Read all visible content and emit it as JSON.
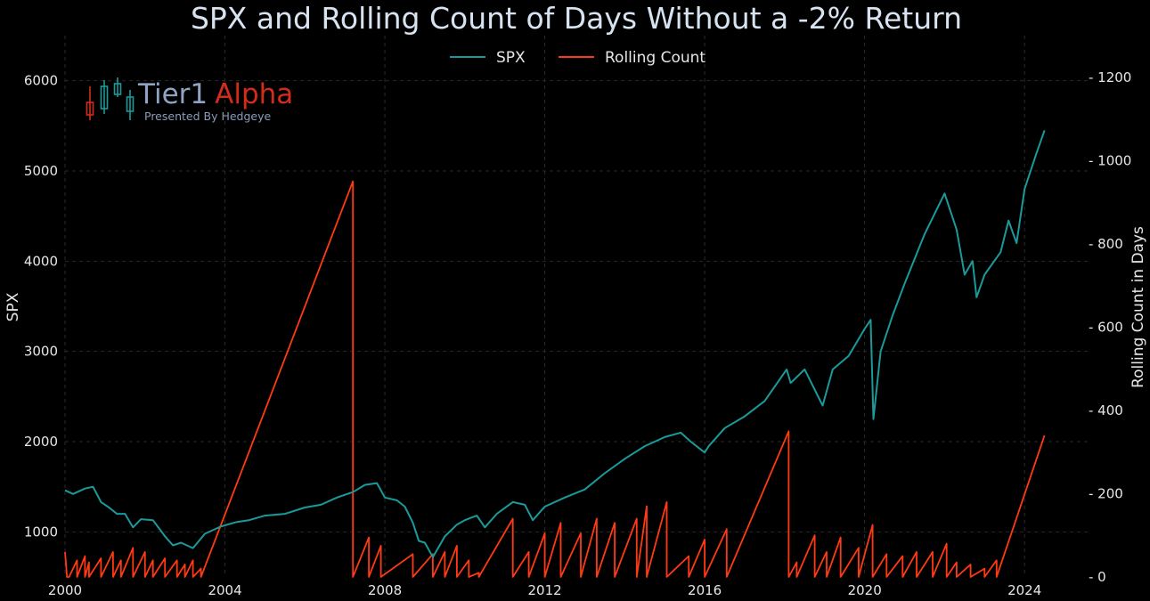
{
  "chart_data": {
    "type": "line",
    "title": "SPX and Rolling Count of Days Without a -2% Return",
    "xlabel": "",
    "ylabel_left": "SPX",
    "ylabel_right": "Rolling Count in Days",
    "xlim": [
      2000,
      2025.6
    ],
    "ylim_left": [
      500,
      6500
    ],
    "ylim_right": [
      0,
      1300
    ],
    "x_ticks": [
      2000,
      2004,
      2008,
      2012,
      2016,
      2020,
      2024
    ],
    "x_tick_labels": [
      "2000",
      "2004",
      "2008",
      "2012",
      "2016",
      "2020",
      "2024"
    ],
    "y_left_ticks": [
      1000,
      2000,
      3000,
      4000,
      5000,
      6000
    ],
    "y_left_tick_labels": [
      "1000",
      "2000",
      "3000",
      "4000",
      "5000",
      "6000"
    ],
    "y_right_ticks": [
      0,
      200,
      400,
      600,
      800,
      1000,
      1200
    ],
    "y_right_tick_labels": [
      "- 0",
      "- 200",
      "- 400",
      "- 600",
      "- 800",
      "- 1000",
      "- 1200"
    ],
    "grid": true,
    "legend_position": "top-center",
    "series": [
      {
        "name": "SPX",
        "axis": "left",
        "color": "#1a9a9a",
        "x": [
          2000.0,
          2000.2,
          2000.5,
          2000.7,
          2000.9,
          2001.1,
          2001.3,
          2001.5,
          2001.7,
          2001.9,
          2002.2,
          2002.5,
          2002.7,
          2002.9,
          2003.2,
          2003.5,
          2003.9,
          2004.3,
          2004.6,
          2005.0,
          2005.5,
          2006.0,
          2006.4,
          2006.8,
          2007.2,
          2007.5,
          2007.8,
          2008.0,
          2008.3,
          2008.5,
          2008.7,
          2008.85,
          2009.0,
          2009.2,
          2009.5,
          2009.8,
          2010.0,
          2010.3,
          2010.5,
          2010.8,
          2011.2,
          2011.5,
          2011.7,
          2012.0,
          2012.5,
          2013.0,
          2013.5,
          2014.0,
          2014.5,
          2015.0,
          2015.4,
          2015.65,
          2016.0,
          2016.1,
          2016.5,
          2017.0,
          2017.5,
          2018.05,
          2018.15,
          2018.5,
          2018.95,
          2019.2,
          2019.6,
          2020.0,
          2020.15,
          2020.22,
          2020.4,
          2020.7,
          2021.0,
          2021.5,
          2022.0,
          2022.3,
          2022.5,
          2022.7,
          2022.8,
          2023.0,
          2023.4,
          2023.6,
          2023.8,
          2024.0,
          2024.3,
          2024.5
        ],
        "y": [
          1460,
          1420,
          1480,
          1500,
          1330,
          1270,
          1200,
          1200,
          1050,
          1140,
          1130,
          950,
          850,
          880,
          820,
          980,
          1060,
          1110,
          1130,
          1180,
          1200,
          1270,
          1300,
          1380,
          1440,
          1520,
          1540,
          1380,
          1350,
          1280,
          1100,
          900,
          880,
          720,
          950,
          1080,
          1130,
          1180,
          1050,
          1200,
          1330,
          1300,
          1130,
          1280,
          1380,
          1470,
          1650,
          1810,
          1950,
          2050,
          2100,
          2000,
          1880,
          1950,
          2150,
          2280,
          2450,
          2800,
          2650,
          2800,
          2400,
          2800,
          2950,
          3250,
          3350,
          2250,
          3000,
          3400,
          3750,
          4300,
          4750,
          4350,
          3850,
          4000,
          3600,
          3850,
          4100,
          4450,
          4200,
          4800,
          5200,
          5450
        ]
      },
      {
        "name": "Rolling Count",
        "axis": "right",
        "color": "#ff3a12",
        "x": [
          2000.0,
          2000.05,
          2000.1,
          2000.3,
          2000.3,
          2000.5,
          2000.5,
          2000.6,
          2000.6,
          2000.9,
          2000.9,
          2001.2,
          2001.2,
          2001.4,
          2001.4,
          2001.7,
          2001.7,
          2002.0,
          2002.0,
          2002.2,
          2002.2,
          2002.5,
          2002.5,
          2002.8,
          2002.8,
          2003.0,
          2003.0,
          2003.2,
          2003.2,
          2003.4,
          2003.4,
          2007.2,
          2007.2,
          2007.6,
          2007.6,
          2007.9,
          2007.9,
          2008.7,
          2008.7,
          2009.2,
          2009.2,
          2009.5,
          2009.5,
          2009.8,
          2009.8,
          2010.1,
          2010.1,
          2010.35,
          2010.35,
          2011.2,
          2011.2,
          2011.6,
          2011.6,
          2012.0,
          2012.0,
          2012.4,
          2012.4,
          2012.9,
          2012.9,
          2013.3,
          2013.3,
          2013.75,
          2013.75,
          2014.3,
          2014.3,
          2014.55,
          2014.55,
          2015.05,
          2015.05,
          2015.6,
          2015.6,
          2016.0,
          2016.0,
          2016.55,
          2016.55,
          2018.1,
          2018.1,
          2018.3,
          2018.3,
          2018.75,
          2018.75,
          2019.05,
          2019.05,
          2019.4,
          2019.4,
          2019.85,
          2019.85,
          2020.2,
          2020.2,
          2020.55,
          2020.55,
          2020.95,
          2020.95,
          2021.3,
          2021.3,
          2021.7,
          2021.7,
          2022.05,
          2022.05,
          2022.3,
          2022.3,
          2022.65,
          2022.65,
          2023.0,
          2023.0,
          2023.3,
          2023.3,
          2024.5
        ],
        "y": [
          60,
          0,
          0,
          40,
          0,
          50,
          0,
          35,
          0,
          45,
          0,
          60,
          0,
          40,
          0,
          70,
          0,
          60,
          0,
          40,
          0,
          45,
          0,
          40,
          0,
          30,
          0,
          40,
          0,
          20,
          0,
          950,
          0,
          95,
          0,
          75,
          0,
          55,
          0,
          55,
          0,
          60,
          0,
          75,
          0,
          40,
          0,
          10,
          0,
          140,
          0,
          60,
          0,
          105,
          0,
          130,
          0,
          105,
          0,
          140,
          0,
          130,
          0,
          140,
          0,
          170,
          0,
          180,
          0,
          50,
          0,
          90,
          0,
          115,
          0,
          350,
          0,
          35,
          0,
          100,
          0,
          60,
          0,
          95,
          0,
          70,
          0,
          125,
          0,
          55,
          0,
          50,
          0,
          60,
          0,
          60,
          0,
          80,
          0,
          35,
          0,
          30,
          0,
          20,
          0,
          40,
          0,
          340
        ]
      }
    ]
  },
  "logo": {
    "brand_primary": "Tier1",
    "brand_secondary": "Alpha",
    "tagline": "Presented By Hedgeye",
    "color_primary": "#8fa3c4",
    "color_secondary": "#d42c1a",
    "candle_red": "#d42c1a",
    "candle_teal": "#1a9a9a"
  }
}
